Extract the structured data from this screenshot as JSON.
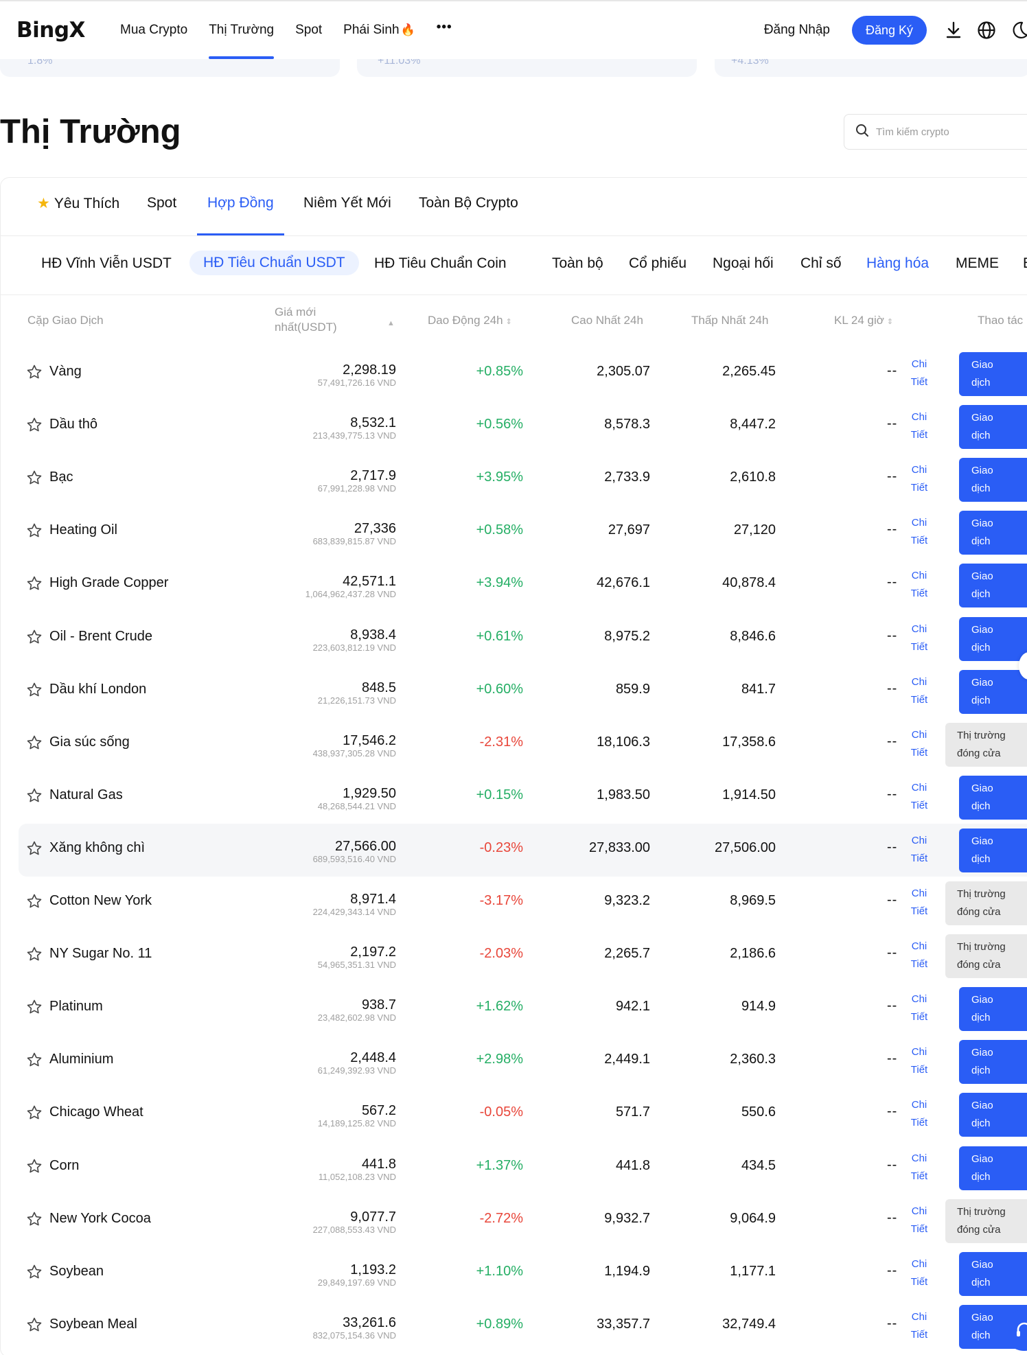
{
  "brand": "BingX",
  "nav": {
    "links": [
      "Mua Crypto",
      "Thị Trường",
      "Spot",
      "Phái Sinh"
    ],
    "active": "Thị Trường",
    "more_icon": "more-dots-icon",
    "login": "Đăng Nhập",
    "register": "Đăng Ký",
    "icons": [
      "download-icon",
      "globe-icon",
      "theme-moon-icon"
    ]
  },
  "strip": [
    "1.8%",
    "+11.03%",
    "+4.13%"
  ],
  "title": "Thị Trường",
  "search": {
    "placeholder": "Tìm kiếm crypto"
  },
  "tabs1": [
    "Yêu Thích",
    "Spot",
    "Hợp Đồng",
    "Niêm Yết Mới",
    "Toàn Bộ Crypto"
  ],
  "tabs1_active": "Hợp Đồng",
  "tabs2": [
    "HĐ Vĩnh Viễn USDT",
    "HĐ Tiêu Chuẩn USDT",
    "HĐ Tiêu Chuẩn Coin",
    "Toàn bộ",
    "Cổ phiếu",
    "Ngoại hối",
    "Chỉ số",
    "Hàng hóa",
    "MEME"
  ],
  "tabs2_active_pill": "HĐ Tiêu Chuẩn USDT",
  "tabs2_active_text": "Hàng hóa",
  "columns": {
    "pair": "Cặp Giao Dịch",
    "price_line1": "Giá mới",
    "price_line2": "nhất(USDT)",
    "change": "Dao Động 24h",
    "high": "Cao Nhất 24h",
    "low": "Thấp Nhất 24h",
    "volume": "KL 24 giờ",
    "action": "Thao tác"
  },
  "labels": {
    "detail_1": "Chi",
    "detail_2": "Tiết",
    "trade_1": "Giao",
    "trade_2": "dịch",
    "closed_1": "Thị trường",
    "closed_2": "đóng cửa",
    "vol_placeholder": "--"
  },
  "colors": {
    "accent": "#2a5df5",
    "up": "#24ae64",
    "down": "#e8463a",
    "star": "#f5b60c"
  },
  "rows": [
    {
      "name": "Vàng",
      "price": "2,298.19",
      "vnd": "57,491,726.16 VND",
      "change": "+0.85%",
      "dir": "up",
      "high": "2,305.07",
      "low": "2,265.45",
      "status": "trade"
    },
    {
      "name": "Dầu thô",
      "price": "8,532.1",
      "vnd": "213,439,775.13 VND",
      "change": "+0.56%",
      "dir": "up",
      "high": "8,578.3",
      "low": "8,447.2",
      "status": "trade"
    },
    {
      "name": "Bạc",
      "price": "2,717.9",
      "vnd": "67,991,228.98 VND",
      "change": "+3.95%",
      "dir": "up",
      "high": "2,733.9",
      "low": "2,610.8",
      "status": "trade"
    },
    {
      "name": "Heating Oil",
      "price": "27,336",
      "vnd": "683,839,815.87 VND",
      "change": "+0.58%",
      "dir": "up",
      "high": "27,697",
      "low": "27,120",
      "status": "trade"
    },
    {
      "name": "High Grade Copper",
      "price": "42,571.1",
      "vnd": "1,064,962,437.28 VND",
      "change": "+3.94%",
      "dir": "up",
      "high": "42,676.1",
      "low": "40,878.4",
      "status": "trade"
    },
    {
      "name": "Oil - Brent Crude",
      "price": "8,938.4",
      "vnd": "223,603,812.19 VND",
      "change": "+0.61%",
      "dir": "up",
      "high": "8,975.2",
      "low": "8,846.6",
      "status": "trade"
    },
    {
      "name": "Dầu khí London",
      "price": "848.5",
      "vnd": "21,226,151.73 VND",
      "change": "+0.60%",
      "dir": "up",
      "high": "859.9",
      "low": "841.7",
      "status": "trade"
    },
    {
      "name": "Gia súc sống",
      "price": "17,546.2",
      "vnd": "438,937,305.28 VND",
      "change": "-2.31%",
      "dir": "dn",
      "high": "18,106.3",
      "low": "17,358.6",
      "status": "closed"
    },
    {
      "name": "Natural Gas",
      "price": "1,929.50",
      "vnd": "48,268,544.21 VND",
      "change": "+0.15%",
      "dir": "up",
      "high": "1,983.50",
      "low": "1,914.50",
      "status": "trade"
    },
    {
      "name": "Xăng không chì",
      "price": "27,566.00",
      "vnd": "689,593,516.40 VND",
      "change": "-0.23%",
      "dir": "dn",
      "high": "27,833.00",
      "low": "27,506.00",
      "status": "trade",
      "highlight": true
    },
    {
      "name": "Cotton New York",
      "price": "8,971.4",
      "vnd": "224,429,343.14 VND",
      "change": "-3.17%",
      "dir": "dn",
      "high": "9,323.2",
      "low": "8,969.5",
      "status": "closed"
    },
    {
      "name": "NY Sugar No. 11",
      "price": "2,197.2",
      "vnd": "54,965,351.31 VND",
      "change": "-2.03%",
      "dir": "dn",
      "high": "2,265.7",
      "low": "2,186.6",
      "status": "closed"
    },
    {
      "name": "Platinum",
      "price": "938.7",
      "vnd": "23,482,602.98 VND",
      "change": "+1.62%",
      "dir": "up",
      "high": "942.1",
      "low": "914.9",
      "status": "trade"
    },
    {
      "name": "Aluminium",
      "price": "2,448.4",
      "vnd": "61,249,392.93 VND",
      "change": "+2.98%",
      "dir": "up",
      "high": "2,449.1",
      "low": "2,360.3",
      "status": "trade"
    },
    {
      "name": "Chicago Wheat",
      "price": "567.2",
      "vnd": "14,189,125.82 VND",
      "change": "-0.05%",
      "dir": "dn",
      "high": "571.7",
      "low": "550.6",
      "status": "trade"
    },
    {
      "name": "Corn",
      "price": "441.8",
      "vnd": "11,052,108.23 VND",
      "change": "+1.37%",
      "dir": "up",
      "high": "441.8",
      "low": "434.5",
      "status": "trade"
    },
    {
      "name": "New York Cocoa",
      "price": "9,077.7",
      "vnd": "227,088,553.43 VND",
      "change": "-2.72%",
      "dir": "dn",
      "high": "9,932.7",
      "low": "9,064.9",
      "status": "closed"
    },
    {
      "name": "Soybean",
      "price": "1,193.2",
      "vnd": "29,849,197.69 VND",
      "change": "+1.10%",
      "dir": "up",
      "high": "1,194.9",
      "low": "1,177.1",
      "status": "trade"
    },
    {
      "name": "Soybean Meal",
      "price": "33,261.6",
      "vnd": "832,075,154.36 VND",
      "change": "+0.89%",
      "dir": "up",
      "high": "33,357.7",
      "low": "32,749.4",
      "status": "trade"
    }
  ]
}
